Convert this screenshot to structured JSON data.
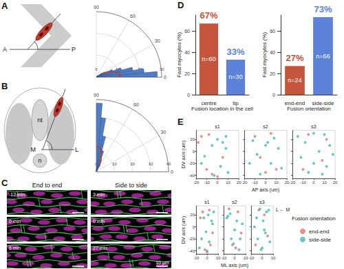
{
  "panels": [
    "A",
    "B",
    "C",
    "D",
    "E"
  ],
  "panel_A_diagram": {
    "labels": [
      "A",
      "P"
    ]
  },
  "panel_B_diagram": {
    "labels": [
      "nt",
      "n",
      "M",
      "L"
    ]
  },
  "panel_C": {
    "columns": [
      {
        "title": "End to end",
        "times": [
          "-12 min",
          "0 min",
          "6 min"
        ]
      },
      {
        "title": "Side to side",
        "times": [
          "3 min",
          "0 min",
          "27 min"
        ]
      }
    ],
    "scale_bar": "10 μm"
  },
  "chart_data": [
    {
      "type": "polar_histogram",
      "bins": [
        0,
        5,
        10,
        15,
        20,
        25,
        30,
        35,
        40,
        45
      ],
      "values": [
        28,
        22,
        17,
        12,
        8,
        4,
        3,
        1,
        0
      ],
      "color": "#4f7cc4",
      "angle_lim": [
        0,
        90
      ],
      "angle_ticks": [
        0,
        30,
        60,
        90
      ],
      "radius_lim": [
        0,
        30
      ],
      "radius_ticks": [
        0,
        10,
        20,
        30
      ],
      "density": {
        "color": "#c0392b",
        "angles": [
          0,
          5,
          10,
          15,
          20,
          25,
          30
        ],
        "values": [
          10,
          11,
          10.5,
          9,
          7,
          5,
          3
        ]
      }
    },
    {
      "type": "polar_histogram",
      "bins": [
        50,
        55,
        60,
        65,
        70,
        75,
        80,
        85,
        90
      ],
      "values": [
        1,
        2,
        4,
        7,
        12,
        20,
        30,
        38
      ],
      "color": "#4f7cc4",
      "angle_lim": [
        0,
        90
      ],
      "angle_ticks": [
        0,
        30,
        60,
        90
      ],
      "radius_lim": [
        0,
        40
      ],
      "radius_ticks": [
        0,
        10,
        20,
        30,
        40
      ],
      "density": {
        "color": "#c0392b",
        "angles": [
          60,
          65,
          70,
          75,
          80,
          85,
          90
        ],
        "values": [
          3,
          5,
          8,
          11,
          13,
          14,
          13
        ]
      }
    },
    {
      "type": "bar",
      "categories": [
        "centre",
        "tip"
      ],
      "values": [
        67,
        33
      ],
      "value_labels": [
        "67%",
        "33%"
      ],
      "colors": [
        "#c4553c",
        "#5d82d9"
      ],
      "annotations": [
        "n=60",
        "n=30"
      ],
      "xlabel": "Fusion location in the cell",
      "ylabel": "Fast myocytes (%)",
      "ylim": [
        0,
        75
      ],
      "yticks": [
        0,
        20,
        40,
        60
      ],
      "data_labels": true,
      "grid": false
    },
    {
      "type": "bar",
      "categories": [
        "end-end",
        "side-side"
      ],
      "values": [
        27,
        73
      ],
      "value_labels": [
        "27%",
        "73%"
      ],
      "colors": [
        "#c4553c",
        "#5d82d9"
      ],
      "annotations": [
        "n=24",
        "n=66"
      ],
      "xlabel": "Fusion orientation",
      "ylabel": "Fast myocytes (%)",
      "ylim": [
        0,
        75
      ],
      "yticks": [
        0,
        20,
        40,
        60
      ],
      "data_labels": true,
      "grid": false
    },
    {
      "type": "scatter",
      "xlabel": "AP axis (um)",
      "ylabel": "DV axis (um)",
      "xlim": [
        -20,
        20
      ],
      "xticks": [
        -20,
        -10,
        0,
        10,
        20
      ],
      "ylim": [
        -45,
        35
      ],
      "yticks": [
        -40,
        -20,
        0,
        20
      ],
      "grid": false,
      "facets": [
        {
          "title": "s1",
          "series": [
            {
              "name": "end-end",
              "color": "#e8736a",
              "x": [
                -15,
                -8,
                -18,
                5,
                -5,
                0,
                -10
              ],
              "y": [
                25,
                28,
                15,
                -10,
                -38,
                -42,
                -30
              ]
            },
            {
              "name": "side-side",
              "color": "#3dbab5",
              "x": [
                0,
                5,
                -5,
                8,
                -15,
                3,
                10,
                -3,
                8,
                -12
              ],
              "y": [
                20,
                15,
                10,
                25,
                -20,
                -25,
                -35,
                -40,
                5,
                -8
              ]
            }
          ]
        },
        {
          "title": "s2",
          "series": [
            {
              "name": "end-end",
              "color": "#e8736a",
              "x": [
                -10,
                5,
                -5,
                10,
                0
              ],
              "y": [
                25,
                30,
                -10,
                -30,
                -35
              ]
            },
            {
              "name": "side-side",
              "color": "#3dbab5",
              "x": [
                -12,
                0,
                8,
                12,
                -8,
                -15,
                5,
                15,
                -5,
                2
              ],
              "y": [
                18,
                10,
                22,
                5,
                -5,
                -20,
                -20,
                -28,
                -38,
                15
              ]
            }
          ]
        },
        {
          "title": "s3",
          "series": [
            {
              "name": "end-end",
              "color": "#e8736a",
              "x": [
                -5,
                8,
                -10,
                12
              ],
              "y": [
                28,
                -15,
                -30,
                20
              ]
            },
            {
              "name": "side-side",
              "color": "#3dbab5",
              "x": [
                -15,
                0,
                10,
                -8,
                15,
                5,
                -12,
                0,
                12,
                -5,
                8,
                18
              ],
              "y": [
                25,
                30,
                28,
                15,
                10,
                0,
                -10,
                -20,
                -25,
                -35,
                -38,
                -5
              ]
            }
          ]
        }
      ]
    },
    {
      "type": "scatter",
      "xlabel": "ML axis (um)",
      "ylabel": "DV axis (um)",
      "xlim": [
        -10,
        10
      ],
      "xticks": [
        -10,
        0,
        10
      ],
      "ylim": [
        -45,
        35
      ],
      "yticks": [
        -40,
        -20,
        0,
        20
      ],
      "grid": false,
      "legend": "right",
      "legend_title": "Fusion orientation",
      "annotation": "L ← M",
      "facets": [
        {
          "title": "s1",
          "series": [
            {
              "name": "end-end",
              "color": "#e8736a",
              "x": [
                -4,
                2,
                -6,
                5,
                -2,
                0,
                3
              ],
              "y": [
                25,
                28,
                15,
                -10,
                -38,
                -42,
                -30
              ]
            },
            {
              "name": "side-side",
              "color": "#3dbab5",
              "x": [
                1,
                -3,
                4,
                6,
                -5,
                2,
                -7,
                0,
                5,
                -1
              ],
              "y": [
                20,
                15,
                10,
                25,
                -20,
                -25,
                -35,
                -40,
                5,
                -8
              ]
            }
          ]
        },
        {
          "title": "s2",
          "series": [
            {
              "name": "end-end",
              "color": "#e8736a",
              "x": [
                3,
                -5,
                6,
                -2,
                1
              ],
              "y": [
                25,
                30,
                -10,
                -30,
                -35
              ]
            },
            {
              "name": "side-side",
              "color": "#3dbab5",
              "x": [
                -6,
                2,
                -4,
                7,
                0,
                -3,
                5,
                -1,
                4,
                -7
              ],
              "y": [
                18,
                10,
                22,
                5,
                -5,
                -20,
                -20,
                -28,
                -38,
                15
              ]
            }
          ]
        },
        {
          "title": "s3",
          "series": [
            {
              "name": "end-end",
              "color": "#e8736a",
              "x": [
                -3,
                5,
                -6,
                2
              ],
              "y": [
                28,
                -15,
                -30,
                20
              ]
            },
            {
              "name": "side-side",
              "color": "#3dbab5",
              "x": [
                4,
                -2,
                6,
                -5,
                1,
                -7,
                3,
                -4,
                7,
                0,
                -1,
                2
              ],
              "y": [
                25,
                30,
                28,
                15,
                10,
                0,
                -10,
                -20,
                -25,
                -35,
                -38,
                -5
              ]
            }
          ]
        }
      ]
    }
  ]
}
